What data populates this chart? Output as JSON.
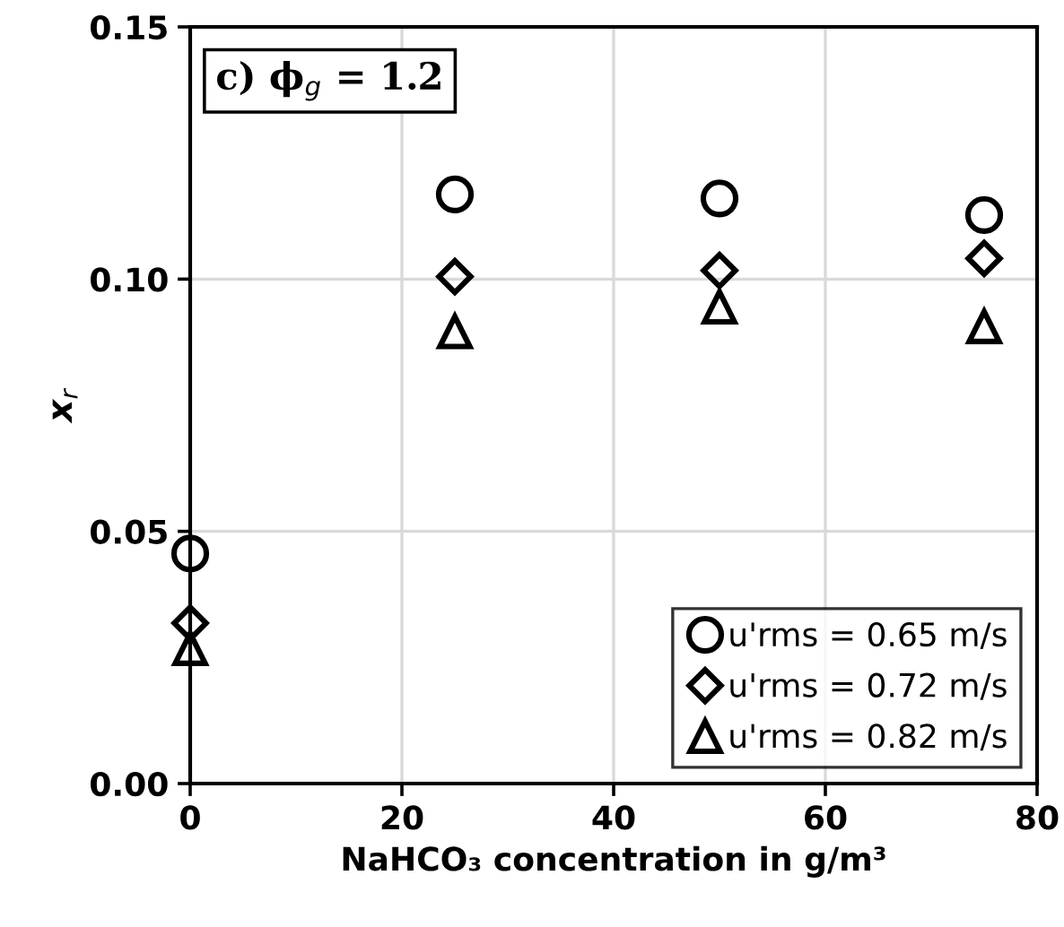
{
  "chart_data": {
    "type": "scatter",
    "title": "c) ϕ$_{g}$ = 1.2",
    "xlabel": "NaHCO₃ concentration in g/m³",
    "ylabel": "x$_{r}$",
    "x": [
      0,
      25,
      50,
      75
    ],
    "series": [
      {
        "name": "u'rms = 0.65 m/s",
        "color": "#000000",
        "marker": "circle",
        "values": [
          0.0456,
          0.1168,
          0.116,
          0.1127
        ]
      },
      {
        "name": "u'rms = 0.72 m/s",
        "color": "#000000",
        "marker": "diamond",
        "values": [
          0.0318,
          0.1005,
          0.1017,
          0.1041
        ]
      },
      {
        "name": "u'rms = 0.82 m/s",
        "color": "#000000",
        "marker": "triangle",
        "values": [
          0.0268,
          0.0896,
          0.0945,
          0.0906
        ]
      }
    ],
    "xlim": [
      0,
      80
    ],
    "xticks": [
      0,
      20,
      40,
      60,
      80
    ],
    "ylim": [
      0,
      0.15
    ],
    "yticks": [
      {
        "value": 0,
        "label": "0.00"
      },
      {
        "value": 0.05,
        "label": "0.05"
      },
      {
        "value": 0.1,
        "label": "0.10"
      },
      {
        "value": 0.15,
        "label": "0.15"
      }
    ],
    "grid": true,
    "legend": "bottom right"
  }
}
